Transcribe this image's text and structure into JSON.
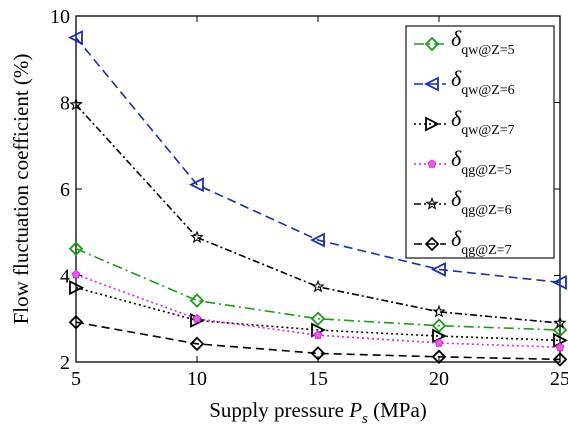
{
  "chart_data": {
    "type": "line",
    "xlabel": {
      "prefix": "Supply pressure ",
      "symbol": "P",
      "subscript": "s",
      "suffix": " (MPa)"
    },
    "ylabel": "Flow fluctuation coefficient (%)",
    "x": [
      5,
      10,
      15,
      20,
      25
    ],
    "xlim": [
      5,
      25
    ],
    "ylim": [
      2,
      10
    ],
    "xticks": [
      "5",
      "10",
      "15",
      "20",
      "25"
    ],
    "yticks": [
      "2",
      "4",
      "6",
      "8",
      "10"
    ],
    "grid": false,
    "legend_position": "top-right",
    "series": [
      {
        "key": "qw5",
        "name": "δqw@Z=5",
        "sym": "δ",
        "sub": "qw@Z=5",
        "values": [
          4.62,
          3.42,
          3.0,
          2.84,
          2.74
        ],
        "color": "#1f9a1f",
        "dash": "10,4,2,4",
        "marker": "diamond",
        "fill": "none"
      },
      {
        "key": "qw6",
        "name": "δqw@Z=6",
        "sym": "δ",
        "sub": "qw@Z=6",
        "values": [
          9.5,
          6.1,
          4.82,
          4.14,
          3.84
        ],
        "color": "#1a2fb0",
        "dash": "9,5",
        "marker": "triangle-left",
        "fill": "none"
      },
      {
        "key": "qw7",
        "name": "δqw@Z=7",
        "sym": "δ",
        "sub": "qw@Z=7",
        "values": [
          3.72,
          2.96,
          2.74,
          2.6,
          2.5
        ],
        "color": "#000000",
        "dash": "2,3",
        "marker": "triangle-right",
        "fill": "none"
      },
      {
        "key": "qg5",
        "name": "δqg@Z=5",
        "sym": "δ",
        "sub": "qg@Z=5",
        "values": [
          4.02,
          3.0,
          2.62,
          2.44,
          2.34
        ],
        "color": "#e020e0",
        "dash": "2,3",
        "marker": "pentagon",
        "fill": "#e060e0"
      },
      {
        "key": "qg6",
        "name": "δqg@Z=6",
        "sym": "δ",
        "sub": "qg@Z=6",
        "values": [
          7.95,
          4.88,
          3.74,
          3.16,
          2.9
        ],
        "color": "#000000",
        "dash": "7,3,2,3",
        "marker": "star",
        "fill": "none"
      },
      {
        "key": "qg7",
        "name": "δqg@Z=7",
        "sym": "δ",
        "sub": "qg@Z=7",
        "values": [
          2.92,
          2.42,
          2.2,
          2.12,
          2.06
        ],
        "color": "#000000",
        "dash": "8,5",
        "marker": "diamond",
        "fill": "none"
      }
    ]
  }
}
